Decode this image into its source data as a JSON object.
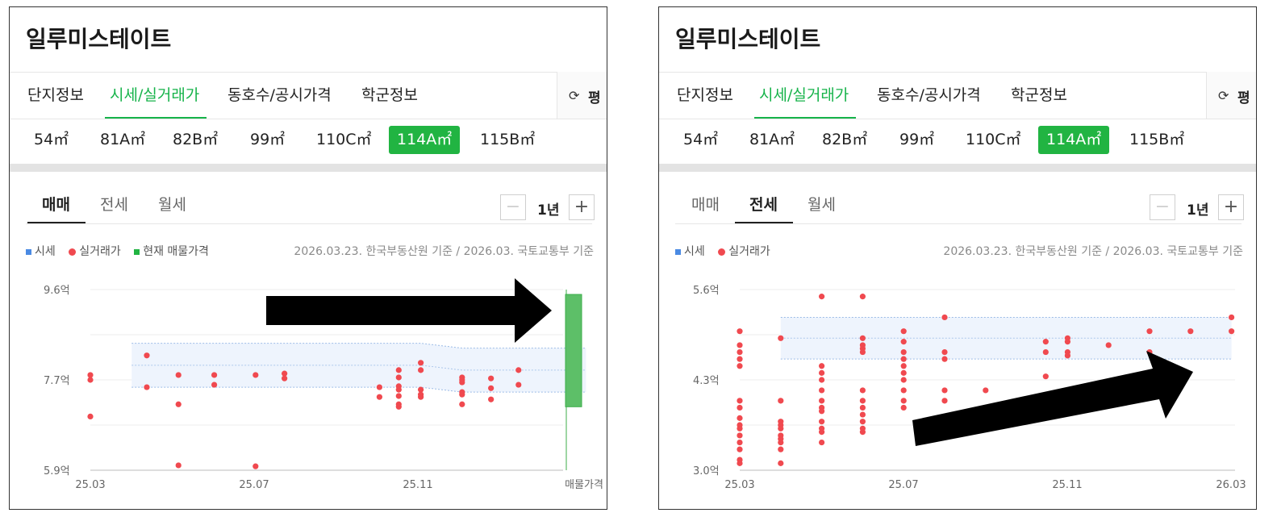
{
  "panels": [
    {
      "title": "일루미스테이트",
      "tabs": [
        "단지정보",
        "시세/실거래가",
        "동호수/공시가격",
        "학군정보"
      ],
      "active_tab": 1,
      "toggle_label": "평",
      "sizes": [
        "54㎡",
        "81A㎡",
        "82B㎡",
        "99㎡",
        "110C㎡",
        "114A㎡",
        "115B㎡"
      ],
      "active_size": 5,
      "deal_tabs": [
        "매매",
        "전세",
        "월세"
      ],
      "active_deal": 0,
      "period": "1년",
      "legend": [
        "시세",
        "실거래가",
        "현재 매물가격"
      ],
      "basis": "2026.03.23. 한국부동산원 기준 / 2026.03. 국토교통부 기준",
      "annotation": "arrow-right (black, pointing to listing price bar)"
    },
    {
      "title": "일루미스테이트",
      "tabs": [
        "단지정보",
        "시세/실거래가",
        "동호수/공시가격",
        "학군정보"
      ],
      "active_tab": 1,
      "toggle_label": "평",
      "sizes": [
        "54㎡",
        "81A㎡",
        "82B㎡",
        "99㎡",
        "110C㎡",
        "114A㎡",
        "115B㎡"
      ],
      "active_size": 5,
      "deal_tabs": [
        "매매",
        "전세",
        "월세"
      ],
      "active_deal": 1,
      "period": "1년",
      "legend": [
        "시세",
        "실거래가"
      ],
      "basis": "2026.03.23. 한국부동산원 기준 / 2026.03. 국토교통부 기준",
      "annotation": "arrow-up-right (black, rising trend)"
    }
  ],
  "colors": {
    "accent_green": "#16b34a",
    "size_active_bg": "#21b442",
    "trade_dot": "#f0494f",
    "market_band": "#eef4fd",
    "market_band_border": "#9bbbe6",
    "listing_bar": "#5dbf68",
    "legend_blue": "#4a8ae3"
  },
  "chart_data": [
    {
      "type": "scatter",
      "deal": "매매",
      "unit": "억",
      "ylim": [
        5.9,
        9.6
      ],
      "yticks": [
        "9.6억",
        "7.7억",
        "5.9억"
      ],
      "xticks": [
        "25.03",
        "25.07",
        "25.11",
        "매물가격"
      ],
      "x_range": [
        "2025-03",
        "2026-03"
      ],
      "market_band": [
        {
          "x": "2025-04",
          "low": 7.6,
          "high": 8.5
        },
        {
          "x": "2025-11",
          "low": 7.6,
          "high": 8.5
        },
        {
          "x": "2025-12",
          "low": 7.5,
          "high": 8.4
        },
        {
          "x": "2026-03",
          "low": 7.5,
          "high": 8.4
        }
      ],
      "trades": [
        {
          "x": "2025-03-01",
          "y": 7.85
        },
        {
          "x": "2025-03-01",
          "y": 7.75
        },
        {
          "x": "2025-03-01",
          "y": 7.0
        },
        {
          "x": "2025-04-12",
          "y": 8.25
        },
        {
          "x": "2025-04-12",
          "y": 7.6
        },
        {
          "x": "2025-05-05",
          "y": 7.85
        },
        {
          "x": "2025-05-05",
          "y": 7.25
        },
        {
          "x": "2025-05-05",
          "y": 6.0
        },
        {
          "x": "2025-06-01",
          "y": 7.85
        },
        {
          "x": "2025-06-01",
          "y": 7.65
        },
        {
          "x": "2025-07-01",
          "y": 7.85
        },
        {
          "x": "2025-07-01",
          "y": 5.98
        },
        {
          "x": "2025-07-22",
          "y": 7.88
        },
        {
          "x": "2025-07-22",
          "y": 7.78
        },
        {
          "x": "2025-10-01",
          "y": 7.6
        },
        {
          "x": "2025-10-01",
          "y": 7.4
        },
        {
          "x": "2025-10-15",
          "y": 7.95
        },
        {
          "x": "2025-10-15",
          "y": 7.8
        },
        {
          "x": "2025-10-15",
          "y": 7.62
        },
        {
          "x": "2025-10-15",
          "y": 7.55
        },
        {
          "x": "2025-10-15",
          "y": 7.42
        },
        {
          "x": "2025-10-15",
          "y": 7.25
        },
        {
          "x": "2025-10-15",
          "y": 7.2
        },
        {
          "x": "2025-11-01",
          "y": 8.1
        },
        {
          "x": "2025-11-01",
          "y": 7.95
        },
        {
          "x": "2025-11-01",
          "y": 7.55
        },
        {
          "x": "2025-11-01",
          "y": 7.45
        },
        {
          "x": "2025-11-01",
          "y": 7.4
        },
        {
          "x": "2025-12-01",
          "y": 7.8
        },
        {
          "x": "2025-12-01",
          "y": 7.75
        },
        {
          "x": "2025-12-01",
          "y": 7.7
        },
        {
          "x": "2025-12-01",
          "y": 7.5
        },
        {
          "x": "2025-12-01",
          "y": 7.45
        },
        {
          "x": "2025-12-01",
          "y": 7.25
        },
        {
          "x": "2025-12-22",
          "y": 7.78
        },
        {
          "x": "2025-12-22",
          "y": 7.58
        },
        {
          "x": "2025-12-22",
          "y": 7.35
        },
        {
          "x": "2026-01-12",
          "y": 7.95
        },
        {
          "x": "2026-01-12",
          "y": 7.65
        }
      ],
      "listing_price": {
        "low": 7.2,
        "high": 9.5
      }
    },
    {
      "type": "scatter",
      "deal": "전세",
      "unit": "억",
      "ylim": [
        3.0,
        5.6
      ],
      "yticks": [
        "5.6억",
        "4.3억",
        "3.0억"
      ],
      "xticks": [
        "25.03",
        "25.07",
        "25.11",
        "26.03"
      ],
      "x_range": [
        "2025-03",
        "2026-03"
      ],
      "market_band": [
        {
          "x": "2025-04",
          "low": 4.6,
          "high": 5.2
        },
        {
          "x": "2026-03",
          "low": 4.6,
          "high": 5.2
        }
      ],
      "trades": [
        {
          "x": "2025-03-01",
          "y": 5.0
        },
        {
          "x": "2025-03-01",
          "y": 4.8
        },
        {
          "x": "2025-03-01",
          "y": 4.7
        },
        {
          "x": "2025-03-01",
          "y": 4.6
        },
        {
          "x": "2025-03-01",
          "y": 4.5
        },
        {
          "x": "2025-03-01",
          "y": 4.0
        },
        {
          "x": "2025-03-01",
          "y": 3.9
        },
        {
          "x": "2025-03-01",
          "y": 3.75
        },
        {
          "x": "2025-03-01",
          "y": 3.65
        },
        {
          "x": "2025-03-01",
          "y": 3.6
        },
        {
          "x": "2025-03-01",
          "y": 3.5
        },
        {
          "x": "2025-03-01",
          "y": 3.4
        },
        {
          "x": "2025-03-01",
          "y": 3.3
        },
        {
          "x": "2025-03-01",
          "y": 3.15
        },
        {
          "x": "2025-03-01",
          "y": 3.1
        },
        {
          "x": "2025-04-01",
          "y": 4.9
        },
        {
          "x": "2025-04-01",
          "y": 4.0
        },
        {
          "x": "2025-04-01",
          "y": 3.7
        },
        {
          "x": "2025-04-01",
          "y": 3.65
        },
        {
          "x": "2025-04-01",
          "y": 3.6
        },
        {
          "x": "2025-04-01",
          "y": 3.5
        },
        {
          "x": "2025-04-01",
          "y": 3.45
        },
        {
          "x": "2025-04-01",
          "y": 3.4
        },
        {
          "x": "2025-04-01",
          "y": 3.3
        },
        {
          "x": "2025-04-01",
          "y": 3.1
        },
        {
          "x": "2025-05-01",
          "y": 5.5
        },
        {
          "x": "2025-05-01",
          "y": 4.5
        },
        {
          "x": "2025-05-01",
          "y": 4.4
        },
        {
          "x": "2025-05-01",
          "y": 4.3
        },
        {
          "x": "2025-05-01",
          "y": 4.15
        },
        {
          "x": "2025-05-01",
          "y": 4.0
        },
        {
          "x": "2025-05-01",
          "y": 3.9
        },
        {
          "x": "2025-05-01",
          "y": 3.85
        },
        {
          "x": "2025-05-01",
          "y": 3.7
        },
        {
          "x": "2025-05-01",
          "y": 3.6
        },
        {
          "x": "2025-05-01",
          "y": 3.55
        },
        {
          "x": "2025-05-01",
          "y": 3.4
        },
        {
          "x": "2025-06-01",
          "y": 5.5
        },
        {
          "x": "2025-06-01",
          "y": 4.9
        },
        {
          "x": "2025-06-01",
          "y": 4.8
        },
        {
          "x": "2025-06-01",
          "y": 4.75
        },
        {
          "x": "2025-06-01",
          "y": 4.7
        },
        {
          "x": "2025-06-01",
          "y": 4.15
        },
        {
          "x": "2025-06-01",
          "y": 4.0
        },
        {
          "x": "2025-06-01",
          "y": 3.9
        },
        {
          "x": "2025-06-01",
          "y": 3.8
        },
        {
          "x": "2025-06-01",
          "y": 3.7
        },
        {
          "x": "2025-06-01",
          "y": 3.6
        },
        {
          "x": "2025-06-01",
          "y": 3.55
        },
        {
          "x": "2025-07-01",
          "y": 5.0
        },
        {
          "x": "2025-07-01",
          "y": 4.85
        },
        {
          "x": "2025-07-01",
          "y": 4.7
        },
        {
          "x": "2025-07-01",
          "y": 4.6
        },
        {
          "x": "2025-07-01",
          "y": 4.5
        },
        {
          "x": "2025-07-01",
          "y": 4.4
        },
        {
          "x": "2025-07-01",
          "y": 4.3
        },
        {
          "x": "2025-07-01",
          "y": 4.15
        },
        {
          "x": "2025-07-01",
          "y": 4.0
        },
        {
          "x": "2025-07-01",
          "y": 3.9
        },
        {
          "x": "2025-08-01",
          "y": 5.2
        },
        {
          "x": "2025-08-01",
          "y": 4.7
        },
        {
          "x": "2025-08-01",
          "y": 4.6
        },
        {
          "x": "2025-08-01",
          "y": 4.15
        },
        {
          "x": "2025-08-01",
          "y": 4.0
        },
        {
          "x": "2025-09-01",
          "y": 4.15
        },
        {
          "x": "2025-10-15",
          "y": 4.85
        },
        {
          "x": "2025-10-15",
          "y": 4.7
        },
        {
          "x": "2025-10-15",
          "y": 4.35
        },
        {
          "x": "2025-11-01",
          "y": 4.9
        },
        {
          "x": "2025-11-01",
          "y": 4.85
        },
        {
          "x": "2025-11-01",
          "y": 4.7
        },
        {
          "x": "2025-11-01",
          "y": 4.65
        },
        {
          "x": "2025-12-01",
          "y": 4.8
        },
        {
          "x": "2026-01-01",
          "y": 5.0
        },
        {
          "x": "2026-01-01",
          "y": 4.7
        },
        {
          "x": "2026-02-01",
          "y": 5.0
        },
        {
          "x": "2026-03-01",
          "y": 5.2
        },
        {
          "x": "2026-03-01",
          "y": 5.0
        }
      ]
    }
  ]
}
